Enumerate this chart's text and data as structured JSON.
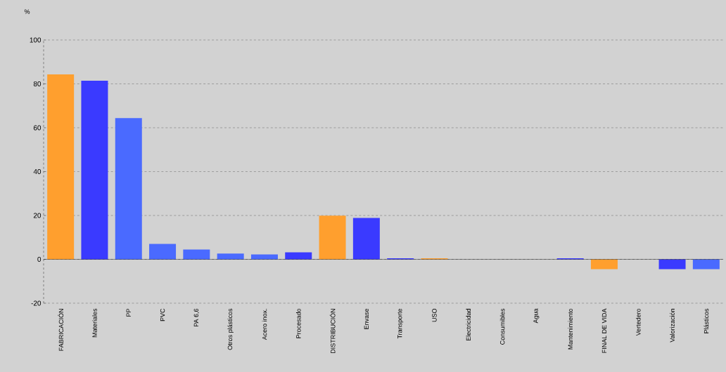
{
  "chart_data": {
    "type": "bar",
    "ylabel": "%",
    "categories": [
      "FABRICACIÓN",
      "Materiales",
      "PP",
      "PVC",
      "PA 6,6",
      "Otros plásticos",
      "Acero inox.",
      "Procesado",
      "DISTRIBUCIÓN",
      "Envase",
      "Transporte",
      "USO",
      "Electricidad",
      "Consumibles",
      "Agua",
      "Mantenimiento",
      "FINAL DE VIDA",
      "Vertedero",
      "Valorización",
      "Plásticos"
    ],
    "values": [
      84.3,
      81.4,
      64.4,
      7.0,
      4.5,
      2.6,
      2.2,
      3.2,
      19.9,
      18.9,
      0.5,
      0.5,
      0,
      0,
      0,
      0.5,
      -4.5,
      0,
      -4.5,
      -4.5
    ],
    "colors": [
      "#ff9f2e",
      "#3a3aff",
      "#4a6aff",
      "#4a6aff",
      "#4a6aff",
      "#4a6aff",
      "#4a6aff",
      "#3a3aff",
      "#ff9f2e",
      "#3a3aff",
      "#3a3aff",
      "#ff9f2e",
      "#3a3aff",
      "#3a3aff",
      "#3a3aff",
      "#3a3aff",
      "#ff9f2e",
      "#3a3aff",
      "#3a3aff",
      "#4a6aff"
    ],
    "ylim": [
      -20,
      100
    ],
    "yticks": [
      -20,
      0,
      20,
      40,
      60,
      80,
      100
    ],
    "grid": "y"
  }
}
